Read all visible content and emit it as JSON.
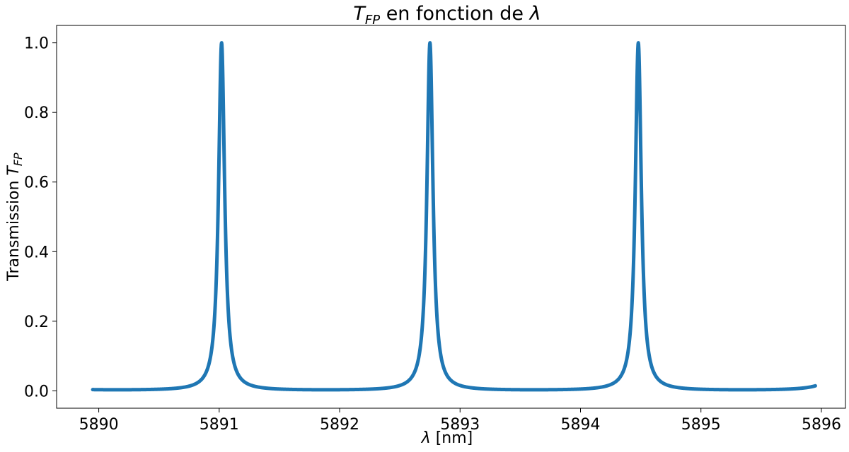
{
  "chart_data": {
    "type": "line",
    "title": {
      "symbol": "T",
      "subscript": "FP",
      "rest": " en fonction de ",
      "symbol2": "λ"
    },
    "xlabel": {
      "symbol": "λ",
      "rest": " [nm]"
    },
    "ylabel": {
      "prefix": "Transmission ",
      "symbol": "T",
      "subscript": "FP"
    },
    "xlim": [
      5889.65,
      5896.2
    ],
    "ylim": [
      -0.05,
      1.05
    ],
    "xticks": [
      5890,
      5891,
      5892,
      5893,
      5894,
      5895,
      5896
    ],
    "xtick_labels": [
      "5890",
      "5891",
      "5892",
      "5893",
      "5894",
      "5895",
      "5896"
    ],
    "yticks": [
      0.0,
      0.2,
      0.4,
      0.6,
      0.8,
      1.0
    ],
    "ytick_labels": [
      "0.0",
      "0.2",
      "0.4",
      "0.6",
      "0.8",
      "1.0"
    ],
    "grid": false,
    "line_color": "#1f77b4",
    "series": [
      {
        "x_range": [
          5889.95,
          5895.95
        ],
        "peaks_x": [
          5891.02,
          5892.75,
          5894.48
        ],
        "peak_value": 1.0,
        "baseline_value": 0.003
      }
    ]
  }
}
